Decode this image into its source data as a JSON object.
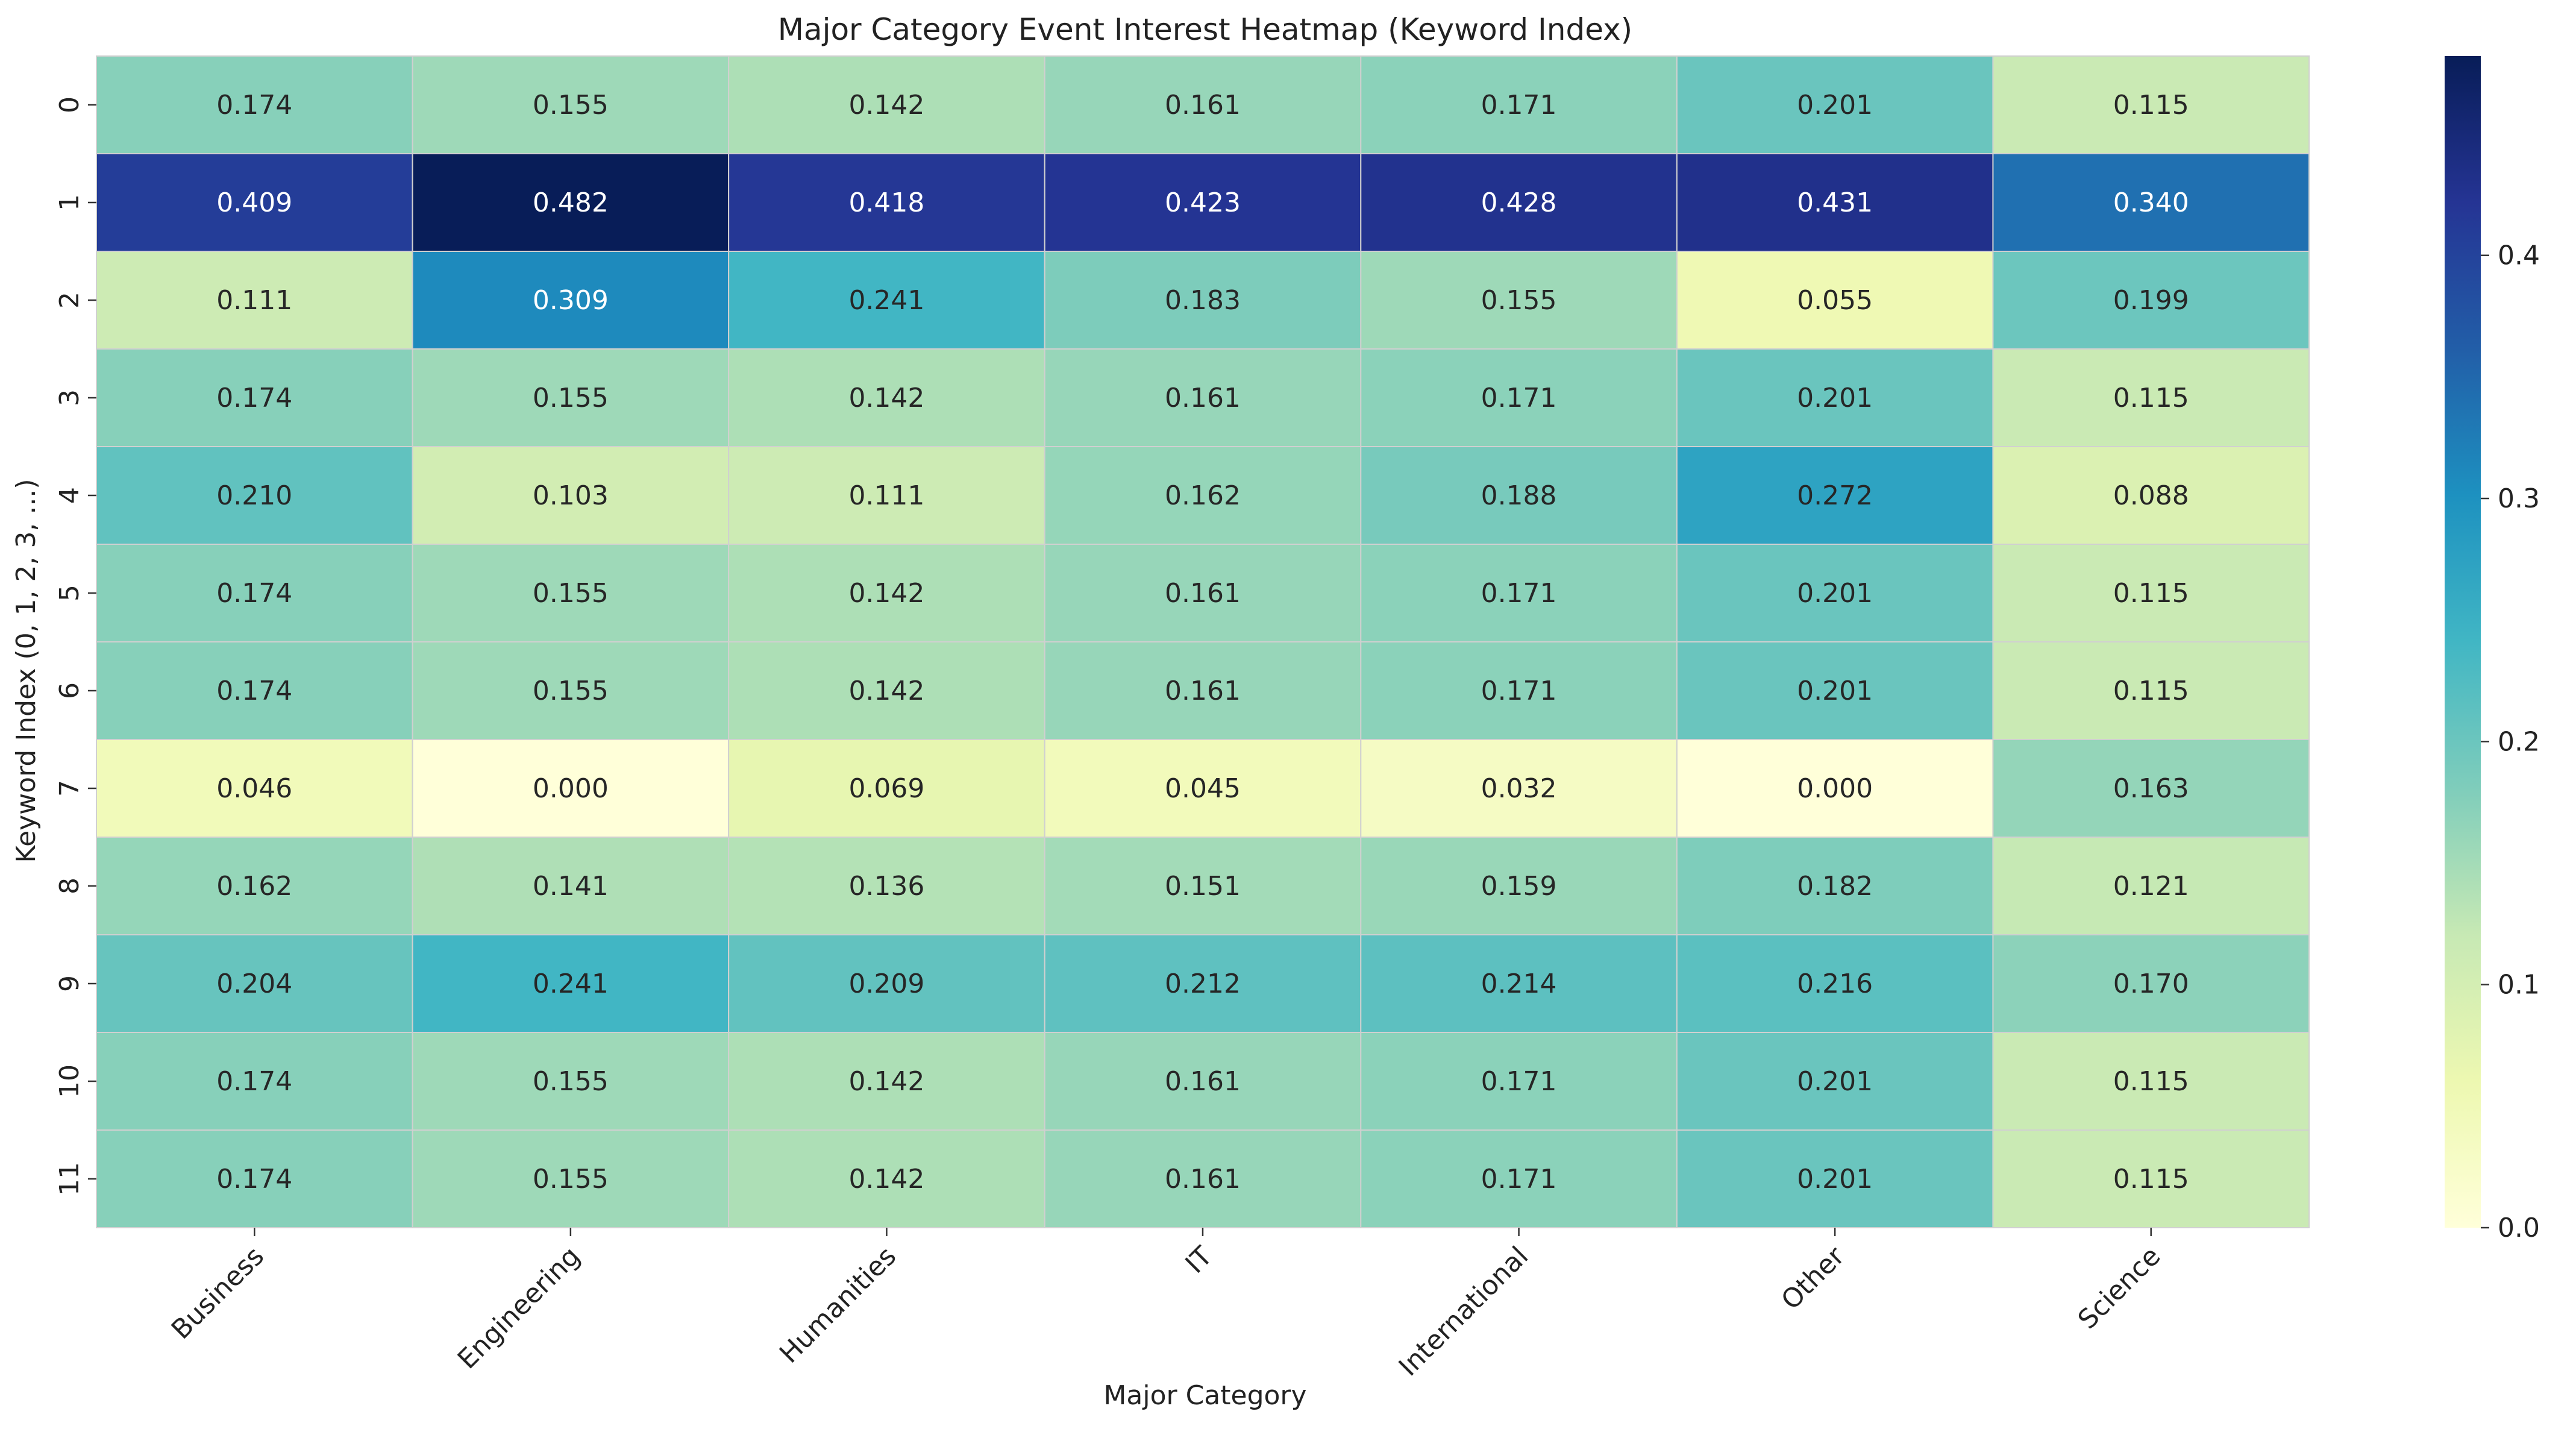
{
  "chart_data": {
    "type": "heatmap",
    "title": "Major Category Event Interest Heatmap (Keyword Index)",
    "xlabel": "Major Category",
    "ylabel": "Keyword Index (0, 1, 2, 3, ...)",
    "x_categories": [
      "Business",
      "Engineering",
      "Humanities",
      "IT",
      "International",
      "Other",
      "Science"
    ],
    "y_categories": [
      "0",
      "1",
      "2",
      "3",
      "4",
      "5",
      "6",
      "7",
      "8",
      "9",
      "10",
      "11"
    ],
    "values": [
      [
        0.174,
        0.155,
        0.142,
        0.161,
        0.171,
        0.201,
        0.115
      ],
      [
        0.409,
        0.482,
        0.418,
        0.423,
        0.428,
        0.431,
        0.34
      ],
      [
        0.111,
        0.309,
        0.241,
        0.183,
        0.155,
        0.055,
        0.199
      ],
      [
        0.174,
        0.155,
        0.142,
        0.161,
        0.171,
        0.201,
        0.115
      ],
      [
        0.21,
        0.103,
        0.111,
        0.162,
        0.188,
        0.272,
        0.088
      ],
      [
        0.174,
        0.155,
        0.142,
        0.161,
        0.171,
        0.201,
        0.115
      ],
      [
        0.174,
        0.155,
        0.142,
        0.161,
        0.171,
        0.201,
        0.115
      ],
      [
        0.046,
        0.0,
        0.069,
        0.045,
        0.032,
        0.0,
        0.163
      ],
      [
        0.162,
        0.141,
        0.136,
        0.151,
        0.159,
        0.182,
        0.121
      ],
      [
        0.204,
        0.241,
        0.209,
        0.212,
        0.214,
        0.216,
        0.17
      ],
      [
        0.174,
        0.155,
        0.142,
        0.161,
        0.171,
        0.201,
        0.115
      ],
      [
        0.174,
        0.155,
        0.142,
        0.161,
        0.171,
        0.201,
        0.115
      ]
    ],
    "value_format": "0.000",
    "value_range": [
      0.0,
      0.482
    ],
    "colormap": "YlGnBu",
    "colormap_stops": [
      "#ffffd9",
      "#edf8b1",
      "#c7e9b4",
      "#7fcdbb",
      "#41b6c4",
      "#1d91c0",
      "#225ea8",
      "#253494",
      "#081d58"
    ],
    "colorbar_ticks": [
      "0.0",
      "0.1",
      "0.2",
      "0.3",
      "0.4"
    ],
    "colorbar_tick_values": [
      0.0,
      0.1,
      0.2,
      0.3,
      0.4
    ],
    "cell_border_color": "#d0d0d0",
    "grid": false,
    "x_tick_rotation": 45
  }
}
